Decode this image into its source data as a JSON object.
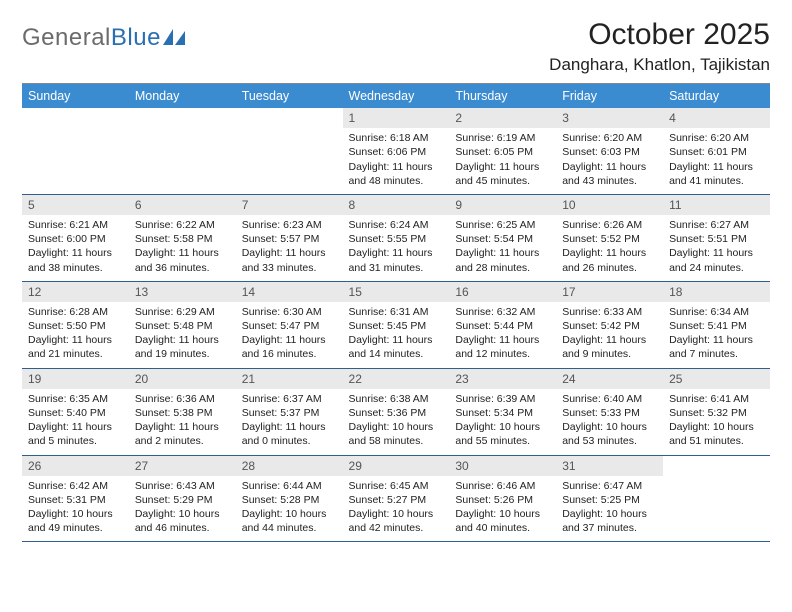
{
  "logo": {
    "word1": "General",
    "word2": "Blue"
  },
  "title": "October 2025",
  "location": "Danghara, Khatlon, Tajikistan",
  "colors": {
    "header_bg": "#3b8bd0",
    "header_text": "#ffffff",
    "daynum_bg": "#e9e9e9",
    "row_border": "#2f5f8f",
    "logo_gray": "#6b6b6b",
    "logo_blue": "#2b6fb3"
  },
  "columns": [
    "Sunday",
    "Monday",
    "Tuesday",
    "Wednesday",
    "Thursday",
    "Friday",
    "Saturday"
  ],
  "weeks": [
    [
      {
        "n": "",
        "sunrise": "",
        "sunset": "",
        "daylight": ""
      },
      {
        "n": "",
        "sunrise": "",
        "sunset": "",
        "daylight": ""
      },
      {
        "n": "",
        "sunrise": "",
        "sunset": "",
        "daylight": ""
      },
      {
        "n": "1",
        "sunrise": "Sunrise: 6:18 AM",
        "sunset": "Sunset: 6:06 PM",
        "daylight": "Daylight: 11 hours and 48 minutes."
      },
      {
        "n": "2",
        "sunrise": "Sunrise: 6:19 AM",
        "sunset": "Sunset: 6:05 PM",
        "daylight": "Daylight: 11 hours and 45 minutes."
      },
      {
        "n": "3",
        "sunrise": "Sunrise: 6:20 AM",
        "sunset": "Sunset: 6:03 PM",
        "daylight": "Daylight: 11 hours and 43 minutes."
      },
      {
        "n": "4",
        "sunrise": "Sunrise: 6:20 AM",
        "sunset": "Sunset: 6:01 PM",
        "daylight": "Daylight: 11 hours and 41 minutes."
      }
    ],
    [
      {
        "n": "5",
        "sunrise": "Sunrise: 6:21 AM",
        "sunset": "Sunset: 6:00 PM",
        "daylight": "Daylight: 11 hours and 38 minutes."
      },
      {
        "n": "6",
        "sunrise": "Sunrise: 6:22 AM",
        "sunset": "Sunset: 5:58 PM",
        "daylight": "Daylight: 11 hours and 36 minutes."
      },
      {
        "n": "7",
        "sunrise": "Sunrise: 6:23 AM",
        "sunset": "Sunset: 5:57 PM",
        "daylight": "Daylight: 11 hours and 33 minutes."
      },
      {
        "n": "8",
        "sunrise": "Sunrise: 6:24 AM",
        "sunset": "Sunset: 5:55 PM",
        "daylight": "Daylight: 11 hours and 31 minutes."
      },
      {
        "n": "9",
        "sunrise": "Sunrise: 6:25 AM",
        "sunset": "Sunset: 5:54 PM",
        "daylight": "Daylight: 11 hours and 28 minutes."
      },
      {
        "n": "10",
        "sunrise": "Sunrise: 6:26 AM",
        "sunset": "Sunset: 5:52 PM",
        "daylight": "Daylight: 11 hours and 26 minutes."
      },
      {
        "n": "11",
        "sunrise": "Sunrise: 6:27 AM",
        "sunset": "Sunset: 5:51 PM",
        "daylight": "Daylight: 11 hours and 24 minutes."
      }
    ],
    [
      {
        "n": "12",
        "sunrise": "Sunrise: 6:28 AM",
        "sunset": "Sunset: 5:50 PM",
        "daylight": "Daylight: 11 hours and 21 minutes."
      },
      {
        "n": "13",
        "sunrise": "Sunrise: 6:29 AM",
        "sunset": "Sunset: 5:48 PM",
        "daylight": "Daylight: 11 hours and 19 minutes."
      },
      {
        "n": "14",
        "sunrise": "Sunrise: 6:30 AM",
        "sunset": "Sunset: 5:47 PM",
        "daylight": "Daylight: 11 hours and 16 minutes."
      },
      {
        "n": "15",
        "sunrise": "Sunrise: 6:31 AM",
        "sunset": "Sunset: 5:45 PM",
        "daylight": "Daylight: 11 hours and 14 minutes."
      },
      {
        "n": "16",
        "sunrise": "Sunrise: 6:32 AM",
        "sunset": "Sunset: 5:44 PM",
        "daylight": "Daylight: 11 hours and 12 minutes."
      },
      {
        "n": "17",
        "sunrise": "Sunrise: 6:33 AM",
        "sunset": "Sunset: 5:42 PM",
        "daylight": "Daylight: 11 hours and 9 minutes."
      },
      {
        "n": "18",
        "sunrise": "Sunrise: 6:34 AM",
        "sunset": "Sunset: 5:41 PM",
        "daylight": "Daylight: 11 hours and 7 minutes."
      }
    ],
    [
      {
        "n": "19",
        "sunrise": "Sunrise: 6:35 AM",
        "sunset": "Sunset: 5:40 PM",
        "daylight": "Daylight: 11 hours and 5 minutes."
      },
      {
        "n": "20",
        "sunrise": "Sunrise: 6:36 AM",
        "sunset": "Sunset: 5:38 PM",
        "daylight": "Daylight: 11 hours and 2 minutes."
      },
      {
        "n": "21",
        "sunrise": "Sunrise: 6:37 AM",
        "sunset": "Sunset: 5:37 PM",
        "daylight": "Daylight: 11 hours and 0 minutes."
      },
      {
        "n": "22",
        "sunrise": "Sunrise: 6:38 AM",
        "sunset": "Sunset: 5:36 PM",
        "daylight": "Daylight: 10 hours and 58 minutes."
      },
      {
        "n": "23",
        "sunrise": "Sunrise: 6:39 AM",
        "sunset": "Sunset: 5:34 PM",
        "daylight": "Daylight: 10 hours and 55 minutes."
      },
      {
        "n": "24",
        "sunrise": "Sunrise: 6:40 AM",
        "sunset": "Sunset: 5:33 PM",
        "daylight": "Daylight: 10 hours and 53 minutes."
      },
      {
        "n": "25",
        "sunrise": "Sunrise: 6:41 AM",
        "sunset": "Sunset: 5:32 PM",
        "daylight": "Daylight: 10 hours and 51 minutes."
      }
    ],
    [
      {
        "n": "26",
        "sunrise": "Sunrise: 6:42 AM",
        "sunset": "Sunset: 5:31 PM",
        "daylight": "Daylight: 10 hours and 49 minutes."
      },
      {
        "n": "27",
        "sunrise": "Sunrise: 6:43 AM",
        "sunset": "Sunset: 5:29 PM",
        "daylight": "Daylight: 10 hours and 46 minutes."
      },
      {
        "n": "28",
        "sunrise": "Sunrise: 6:44 AM",
        "sunset": "Sunset: 5:28 PM",
        "daylight": "Daylight: 10 hours and 44 minutes."
      },
      {
        "n": "29",
        "sunrise": "Sunrise: 6:45 AM",
        "sunset": "Sunset: 5:27 PM",
        "daylight": "Daylight: 10 hours and 42 minutes."
      },
      {
        "n": "30",
        "sunrise": "Sunrise: 6:46 AM",
        "sunset": "Sunset: 5:26 PM",
        "daylight": "Daylight: 10 hours and 40 minutes."
      },
      {
        "n": "31",
        "sunrise": "Sunrise: 6:47 AM",
        "sunset": "Sunset: 5:25 PM",
        "daylight": "Daylight: 10 hours and 37 minutes."
      },
      {
        "n": "",
        "sunrise": "",
        "sunset": "",
        "daylight": ""
      }
    ]
  ]
}
